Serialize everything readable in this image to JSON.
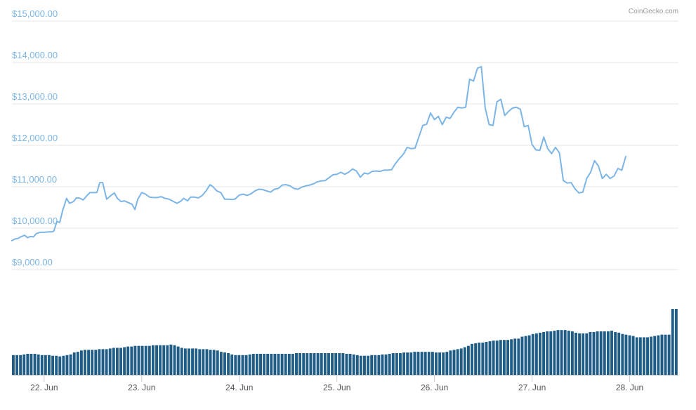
{
  "credit": "CoinGecko.com",
  "chart_data": {
    "type": "line",
    "title": "",
    "xlabel": "",
    "ylabel": "",
    "colors": {
      "line": "#7cb5e6",
      "volume": "#1f5d86",
      "grid": "#e6e6e6"
    },
    "y_ticks": [
      {
        "value": 9000,
        "label": "$9,000.00"
      },
      {
        "value": 10000,
        "label": "$10,000.00"
      },
      {
        "value": 11000,
        "label": "$11,000.00"
      },
      {
        "value": 12000,
        "label": "$12,000.00"
      },
      {
        "value": 13000,
        "label": "$13,000.00"
      },
      {
        "value": 14000,
        "label": "$14,000.00"
      },
      {
        "value": 15000,
        "label": "$15,000.00"
      }
    ],
    "ylim": [
      8000,
      15200
    ],
    "x_start_day": 21.67,
    "x_end_day": 28.5,
    "x_ticks": [
      {
        "day": 22,
        "label": "22. Jun"
      },
      {
        "day": 23,
        "label": "23. Jun"
      },
      {
        "day": 24,
        "label": "24. Jun"
      },
      {
        "day": 25,
        "label": "25. Jun"
      },
      {
        "day": 26,
        "label": "26. Jun"
      },
      {
        "day": 27,
        "label": "27. Jun"
      },
      {
        "day": 28,
        "label": "28. Jun"
      }
    ],
    "series": [
      {
        "kind": "price",
        "points": [
          [
            21.67,
            9700
          ],
          [
            21.7,
            9740
          ],
          [
            21.73,
            9750
          ],
          [
            21.76,
            9790
          ],
          [
            21.8,
            9830
          ],
          [
            21.83,
            9770
          ],
          [
            21.86,
            9800
          ],
          [
            21.89,
            9790
          ],
          [
            21.92,
            9870
          ],
          [
            21.96,
            9900
          ],
          [
            22.0,
            9900
          ],
          [
            22.04,
            9910
          ],
          [
            22.08,
            9910
          ],
          [
            22.1,
            9930
          ],
          [
            22.13,
            10160
          ],
          [
            22.16,
            10140
          ],
          [
            22.19,
            10430
          ],
          [
            22.23,
            10720
          ],
          [
            22.26,
            10600
          ],
          [
            22.3,
            10640
          ],
          [
            22.33,
            10730
          ],
          [
            22.37,
            10720
          ],
          [
            22.4,
            10680
          ],
          [
            22.44,
            10790
          ],
          [
            22.47,
            10860
          ],
          [
            22.51,
            10860
          ],
          [
            22.54,
            10860
          ],
          [
            22.57,
            11100
          ],
          [
            22.6,
            11100
          ],
          [
            22.64,
            10700
          ],
          [
            22.68,
            10780
          ],
          [
            22.72,
            10850
          ],
          [
            22.75,
            10720
          ],
          [
            22.79,
            10640
          ],
          [
            22.82,
            10660
          ],
          [
            22.86,
            10620
          ],
          [
            22.9,
            10580
          ],
          [
            22.93,
            10450
          ],
          [
            22.96,
            10700
          ],
          [
            23.0,
            10860
          ],
          [
            23.04,
            10820
          ],
          [
            23.08,
            10750
          ],
          [
            23.12,
            10740
          ],
          [
            23.16,
            10740
          ],
          [
            23.2,
            10760
          ],
          [
            23.24,
            10720
          ],
          [
            23.28,
            10700
          ],
          [
            23.32,
            10650
          ],
          [
            23.36,
            10600
          ],
          [
            23.4,
            10650
          ],
          [
            23.43,
            10720
          ],
          [
            23.47,
            10660
          ],
          [
            23.5,
            10750
          ],
          [
            23.54,
            10750
          ],
          [
            23.58,
            10730
          ],
          [
            23.62,
            10790
          ],
          [
            23.66,
            10900
          ],
          [
            23.7,
            11050
          ],
          [
            23.73,
            11000
          ],
          [
            23.77,
            10900
          ],
          [
            23.81,
            10860
          ],
          [
            23.85,
            10700
          ],
          [
            23.89,
            10700
          ],
          [
            23.93,
            10690
          ],
          [
            23.96,
            10710
          ],
          [
            24.0,
            10800
          ],
          [
            24.04,
            10820
          ],
          [
            24.08,
            10790
          ],
          [
            24.12,
            10830
          ],
          [
            24.16,
            10900
          ],
          [
            24.2,
            10940
          ],
          [
            24.24,
            10930
          ],
          [
            24.28,
            10900
          ],
          [
            24.32,
            10870
          ],
          [
            24.36,
            10940
          ],
          [
            24.4,
            10960
          ],
          [
            24.44,
            11040
          ],
          [
            24.48,
            11050
          ],
          [
            24.52,
            11020
          ],
          [
            24.56,
            10960
          ],
          [
            24.6,
            10940
          ],
          [
            24.64,
            10990
          ],
          [
            24.68,
            11020
          ],
          [
            24.72,
            11040
          ],
          [
            24.76,
            11070
          ],
          [
            24.8,
            11120
          ],
          [
            24.84,
            11140
          ],
          [
            24.88,
            11150
          ],
          [
            24.92,
            11220
          ],
          [
            24.96,
            11290
          ],
          [
            25.0,
            11300
          ],
          [
            25.04,
            11350
          ],
          [
            25.08,
            11300
          ],
          [
            25.12,
            11350
          ],
          [
            25.16,
            11430
          ],
          [
            25.2,
            11380
          ],
          [
            25.24,
            11230
          ],
          [
            25.28,
            11330
          ],
          [
            25.32,
            11310
          ],
          [
            25.36,
            11370
          ],
          [
            25.4,
            11380
          ],
          [
            25.44,
            11370
          ],
          [
            25.48,
            11400
          ],
          [
            25.52,
            11400
          ],
          [
            25.56,
            11410
          ],
          [
            25.6,
            11560
          ],
          [
            25.64,
            11680
          ],
          [
            25.68,
            11780
          ],
          [
            25.72,
            11950
          ],
          [
            25.76,
            11920
          ],
          [
            25.8,
            11930
          ],
          [
            25.84,
            12200
          ],
          [
            25.88,
            12480
          ],
          [
            25.92,
            12510
          ],
          [
            25.96,
            12780
          ],
          [
            26.0,
            12620
          ],
          [
            26.04,
            12700
          ],
          [
            26.08,
            12500
          ],
          [
            26.12,
            12680
          ],
          [
            26.16,
            12650
          ],
          [
            26.2,
            12800
          ],
          [
            26.24,
            12920
          ],
          [
            26.28,
            12900
          ],
          [
            26.32,
            12920
          ],
          [
            26.36,
            13600
          ],
          [
            26.4,
            13550
          ],
          [
            26.44,
            13860
          ],
          [
            26.48,
            13900
          ],
          [
            26.52,
            12900
          ],
          [
            26.56,
            12500
          ],
          [
            26.6,
            12480
          ],
          [
            26.64,
            13050
          ],
          [
            26.68,
            13110
          ],
          [
            26.72,
            12720
          ],
          [
            26.76,
            12820
          ],
          [
            26.8,
            12900
          ],
          [
            26.84,
            12920
          ],
          [
            26.88,
            12870
          ],
          [
            26.92,
            12450
          ],
          [
            26.96,
            12480
          ],
          [
            27.0,
            12020
          ],
          [
            27.04,
            11890
          ],
          [
            27.08,
            11880
          ],
          [
            27.12,
            12200
          ],
          [
            27.16,
            11920
          ],
          [
            27.2,
            11800
          ],
          [
            27.24,
            11950
          ],
          [
            27.28,
            11820
          ],
          [
            27.32,
            11150
          ],
          [
            27.36,
            11090
          ],
          [
            27.4,
            11100
          ],
          [
            27.44,
            10950
          ],
          [
            27.48,
            10850
          ],
          [
            27.52,
            10870
          ],
          [
            27.56,
            11200
          ],
          [
            27.6,
            11350
          ],
          [
            27.64,
            11630
          ],
          [
            27.68,
            11500
          ],
          [
            27.72,
            11200
          ],
          [
            27.76,
            11300
          ],
          [
            27.8,
            11200
          ],
          [
            27.84,
            11260
          ],
          [
            27.88,
            11440
          ],
          [
            27.92,
            11400
          ],
          [
            27.96,
            11730
          ]
        ]
      },
      {
        "kind": "volume",
        "relative_height": [
          0.3,
          0.3,
          0.3,
          0.31,
          0.32,
          0.32,
          0.32,
          0.31,
          0.3,
          0.3,
          0.3,
          0.29,
          0.29,
          0.28,
          0.29,
          0.3,
          0.31,
          0.34,
          0.35,
          0.37,
          0.38,
          0.38,
          0.38,
          0.38,
          0.39,
          0.39,
          0.39,
          0.4,
          0.41,
          0.41,
          0.41,
          0.42,
          0.43,
          0.43,
          0.44,
          0.44,
          0.44,
          0.44,
          0.44,
          0.45,
          0.45,
          0.45,
          0.45,
          0.45,
          0.46,
          0.45,
          0.43,
          0.41,
          0.4,
          0.4,
          0.4,
          0.4,
          0.39,
          0.39,
          0.39,
          0.38,
          0.38,
          0.37,
          0.35,
          0.34,
          0.33,
          0.31,
          0.3,
          0.3,
          0.3,
          0.3,
          0.31,
          0.32,
          0.32,
          0.32,
          0.32,
          0.32,
          0.32,
          0.32,
          0.32,
          0.32,
          0.32,
          0.32,
          0.32,
          0.33,
          0.33,
          0.33,
          0.33,
          0.33,
          0.33,
          0.33,
          0.33,
          0.33,
          0.33,
          0.33,
          0.33,
          0.33,
          0.33,
          0.32,
          0.32,
          0.31,
          0.3,
          0.29,
          0.29,
          0.29,
          0.3,
          0.3,
          0.3,
          0.31,
          0.31,
          0.32,
          0.33,
          0.33,
          0.33,
          0.34,
          0.34,
          0.34,
          0.35,
          0.35,
          0.35,
          0.35,
          0.35,
          0.35,
          0.34,
          0.34,
          0.34,
          0.35,
          0.37,
          0.38,
          0.39,
          0.4,
          0.42,
          0.44,
          0.47,
          0.48,
          0.49,
          0.49,
          0.5,
          0.51,
          0.52,
          0.52,
          0.53,
          0.53,
          0.53,
          0.54,
          0.55,
          0.55,
          0.58,
          0.59,
          0.6,
          0.62,
          0.63,
          0.64,
          0.65,
          0.66,
          0.66,
          0.67,
          0.68,
          0.68,
          0.68,
          0.67,
          0.66,
          0.64,
          0.63,
          0.63,
          0.63,
          0.65,
          0.65,
          0.66,
          0.66,
          0.66,
          0.66,
          0.67,
          0.65,
          0.64,
          0.62,
          0.61,
          0.6,
          0.59,
          0.57,
          0.57,
          0.57,
          0.57,
          0.58,
          0.59,
          0.6,
          0.61,
          0.61,
          0.61,
          1.0,
          1.0
        ]
      }
    ],
    "volume_scale_top": 8050
  }
}
